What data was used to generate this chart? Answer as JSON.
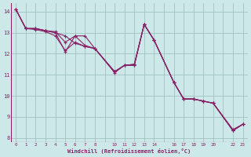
{
  "xlabel": "Windchill (Refroidissement éolien,°C)",
  "background_color": "#cce8e8",
  "line_color": "#882266",
  "grid_color": "#99bbbb",
  "xlim": [
    -0.5,
    23.5
  ],
  "ylim": [
    7.8,
    14.4
  ],
  "yticks": [
    8,
    9,
    10,
    11,
    12,
    13,
    14
  ],
  "xtick_positions": [
    0,
    1,
    2,
    3,
    4,
    5,
    6,
    7,
    8,
    10,
    11,
    12,
    13,
    14,
    16,
    17,
    18,
    19,
    20,
    22,
    23
  ],
  "lines": [
    {
      "x": [
        0,
        1,
        2,
        3,
        4,
        5,
        6,
        7,
        8,
        10,
        11,
        12,
        13,
        14,
        16,
        17,
        18,
        19,
        20,
        22,
        23
      ],
      "y": [
        14.1,
        13.2,
        13.15,
        13.05,
        12.85,
        12.15,
        12.55,
        12.35,
        12.25,
        11.15,
        11.45,
        11.45,
        13.4,
        12.65,
        10.65,
        9.85,
        9.85,
        9.75,
        9.65,
        8.35,
        8.65
      ]
    },
    {
      "x": [
        0,
        1,
        2,
        3,
        4,
        5,
        6,
        7,
        8,
        10,
        11,
        12,
        13,
        14,
        16,
        17,
        18,
        19,
        20,
        22,
        23
      ],
      "y": [
        14.1,
        13.2,
        13.2,
        13.1,
        13.0,
        12.1,
        12.85,
        12.85,
        12.25,
        11.1,
        11.45,
        11.5,
        13.4,
        12.65,
        10.65,
        9.85,
        9.85,
        9.75,
        9.65,
        8.35,
        8.65
      ]
    },
    {
      "x": [
        0,
        1,
        2,
        3,
        4,
        5,
        6,
        7,
        8,
        10,
        11,
        12,
        13,
        14,
        16,
        17,
        18,
        19,
        20,
        22,
        23
      ],
      "y": [
        14.1,
        13.2,
        13.2,
        13.1,
        13.05,
        12.55,
        12.85,
        12.4,
        12.25,
        11.15,
        11.45,
        11.45,
        13.4,
        12.65,
        10.65,
        9.85,
        9.85,
        9.75,
        9.65,
        8.4,
        8.65
      ]
    },
    {
      "x": [
        0,
        1,
        2,
        3,
        4,
        5,
        6,
        7,
        8,
        10,
        11,
        12,
        13,
        14,
        16,
        17,
        18,
        19,
        20,
        22,
        23
      ],
      "y": [
        14.1,
        13.2,
        13.2,
        13.1,
        13.0,
        12.85,
        12.5,
        12.35,
        12.25,
        11.15,
        11.45,
        11.5,
        13.4,
        12.65,
        10.65,
        9.85,
        9.85,
        9.75,
        9.65,
        8.35,
        8.65
      ]
    }
  ]
}
